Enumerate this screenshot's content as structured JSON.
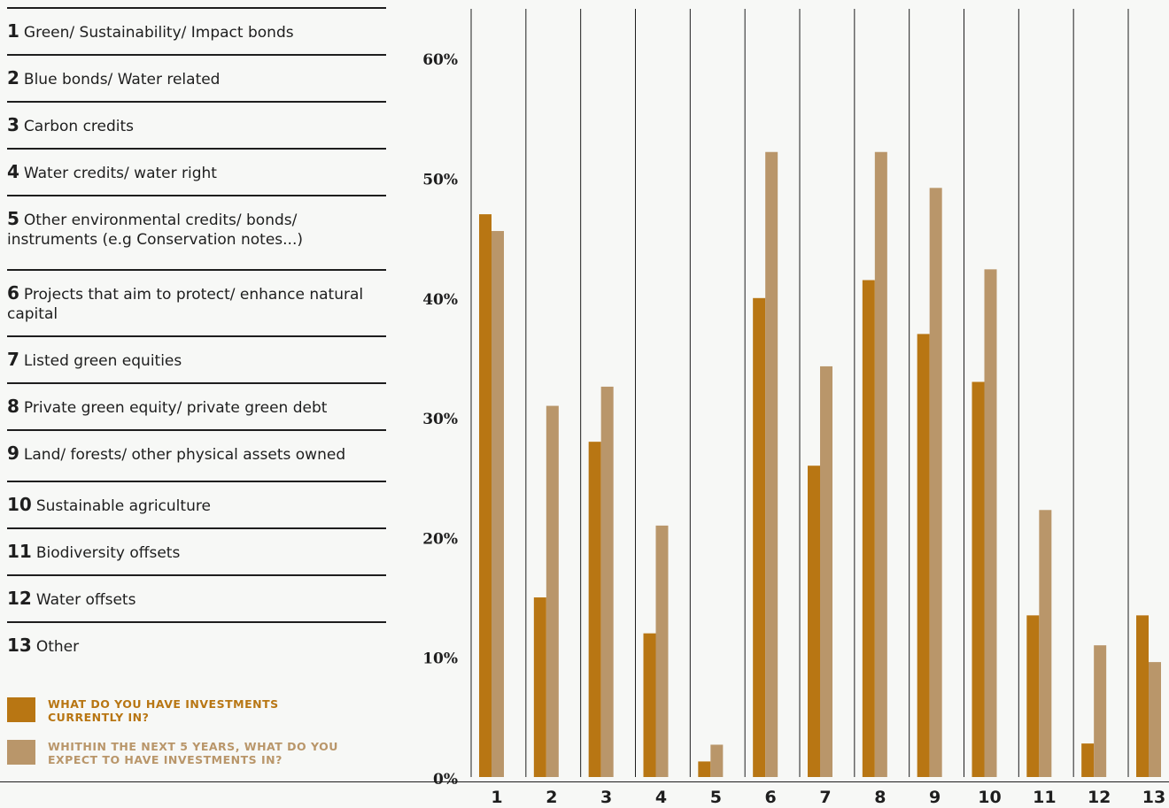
{
  "chart_data": {
    "type": "bar",
    "title": "",
    "xlabel": "",
    "ylabel": "",
    "ylim": [
      0,
      60
    ],
    "yticks": [
      "0%",
      "10%",
      "20%",
      "30%",
      "40%",
      "50%",
      "60%"
    ],
    "categories": [
      "1",
      "2",
      "3",
      "4",
      "5",
      "6",
      "7",
      "8",
      "9",
      "10",
      "11",
      "12",
      "13"
    ],
    "category_labels": [
      "Green/ Sustainability/ Impact bonds",
      "Blue bonds/ Water related",
      "Carbon credits",
      "Water credits/ water right",
      "Other environmental credits/ bonds/ instruments (e.g Conservation notes...)",
      "Projects that aim to protect/ enhance natural capital",
      "Listed green equities",
      "Private green equity/ private green debt",
      "Land/ forests/ other physical assets owned",
      "Sustainable agriculture",
      "Biodiversity offsets",
      "Water offsets",
      "Other"
    ],
    "series": [
      {
        "name": "WHAT DO YOU HAVE INVESTMENTS CURRENTLY IN?",
        "color": "#b87613",
        "values": [
          47,
          15,
          28,
          12,
          1.3,
          40,
          26,
          41.5,
          37,
          33,
          13.5,
          2.8,
          13.5
        ]
      },
      {
        "name": "WHITHIN THE NEXT 5 YEARS, WHAT DO YOU EXPECT TO HAVE INVESTMENTS IN?",
        "color": "#b9966a",
        "values": [
          45.6,
          31,
          32.6,
          21,
          2.7,
          52.2,
          34.3,
          52.2,
          49.2,
          42.4,
          22.3,
          11,
          9.6
        ]
      }
    ],
    "grid": true,
    "legend_position": "bottom-left"
  }
}
